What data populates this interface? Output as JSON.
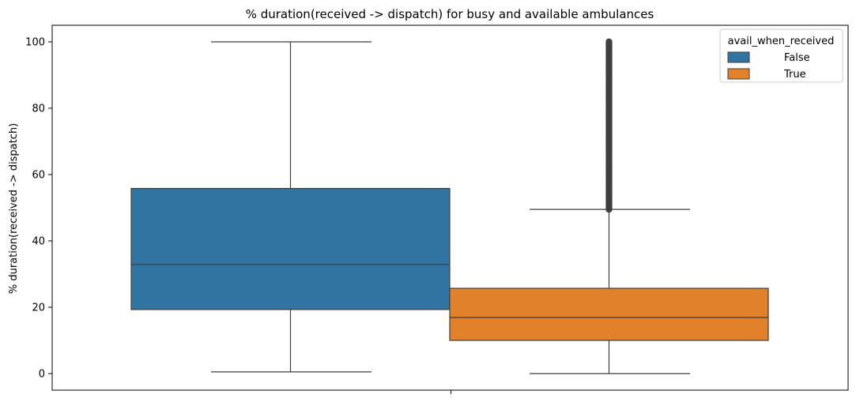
{
  "chart_data": {
    "type": "box",
    "title": "% duration(received -> dispatch) for busy and available ambulances",
    "xlabel": "",
    "ylabel": "% duration(received -> dispatch)",
    "ylim": [
      -5,
      105
    ],
    "yticks": [
      0,
      20,
      40,
      60,
      80,
      100
    ],
    "ytick_labels": [
      "0",
      "20",
      "40",
      "60",
      "80",
      "100"
    ],
    "grid": false,
    "legend": {
      "title": "avail_when_received",
      "position": "top-right",
      "entries": [
        "False",
        "True"
      ]
    },
    "series": [
      {
        "name": "False",
        "color": "#3274a1",
        "min": 0.5,
        "q1": 19.3,
        "median": 32.9,
        "q3": 55.8,
        "max": 100,
        "outliers": []
      },
      {
        "name": "True",
        "color": "#e1812c",
        "min": 0,
        "q1": 10,
        "median": 16.9,
        "q3": 25.7,
        "max": 49.5,
        "outliers_range": [
          49.5,
          100
        ]
      }
    ]
  }
}
